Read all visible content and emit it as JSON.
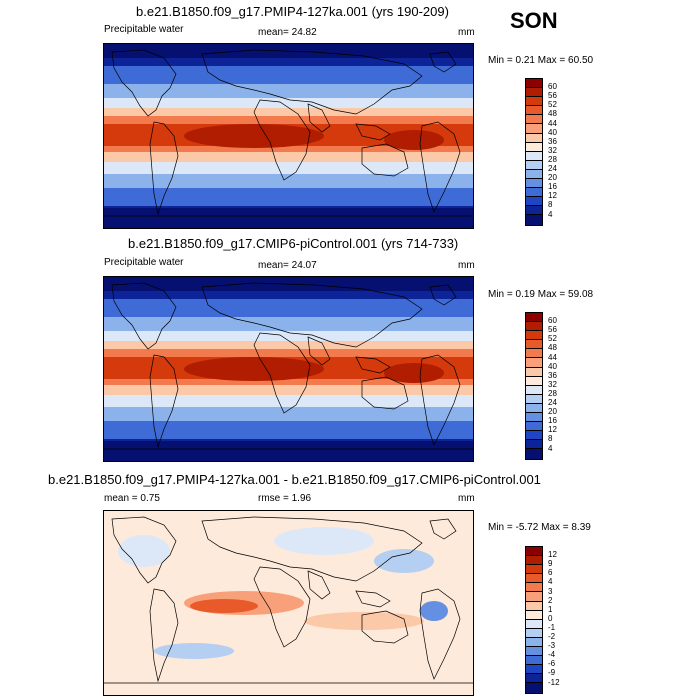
{
  "season": "SON",
  "panels": [
    {
      "title": "b.e21.B1850.f09_g17.PMIP4-127ka.001 (yrs 190-209)",
      "left_label": "Precipitable water",
      "center_label": "mean=  24.82",
      "units": "mm",
      "minmax": "Min =   0.21 Max =  60.50",
      "kind": "abs"
    },
    {
      "title": "b.e21.B1850.f09_g17.CMIP6-piControl.001 (yrs 714-733)",
      "left_label": "Precipitable water",
      "center_label": "mean=  24.07",
      "units": "mm",
      "minmax": "Min =   0.19 Max =  59.08",
      "kind": "abs"
    },
    {
      "title": "b.e21.B1850.f09_g17.PMIP4-127ka.001 - b.e21.B1850.f09_g17.CMIP6-piControl.001",
      "left_label": "mean =   0.75",
      "center_label": "rmse =   1.96",
      "units": "mm",
      "minmax": "Min =  -5.72 Max =   8.39",
      "kind": "diff"
    }
  ],
  "colorbars": {
    "abs": {
      "labels": [
        "60",
        "56",
        "52",
        "48",
        "44",
        "40",
        "36",
        "32",
        "28",
        "24",
        "20",
        "16",
        "12",
        "8",
        "4"
      ],
      "colors": [
        "#8b0000",
        "#b01d00",
        "#d43a0b",
        "#e85a2a",
        "#f27a4c",
        "#f7a07a",
        "#fbc8a8",
        "#fdeadb",
        "#dce8f8",
        "#b4cff2",
        "#8cb2ec",
        "#6590e2",
        "#3e6bd6",
        "#1f45c4",
        "#0d2398",
        "#061070"
      ]
    },
    "diff": {
      "labels": [
        "12",
        "9",
        "6",
        "4",
        "3",
        "2",
        "1",
        "0",
        "-1",
        "-2",
        "-3",
        "-4",
        "-6",
        "-9",
        "-12"
      ],
      "colors": [
        "#8b0000",
        "#b01d00",
        "#d43a0b",
        "#e85a2a",
        "#f27a4c",
        "#f7a07a",
        "#fbc8a8",
        "#fdeadb",
        "#dce8f8",
        "#b4cff2",
        "#8cb2ec",
        "#6590e2",
        "#3e6bd6",
        "#1f45c4",
        "#0d2398",
        "#061070"
      ]
    }
  }
}
